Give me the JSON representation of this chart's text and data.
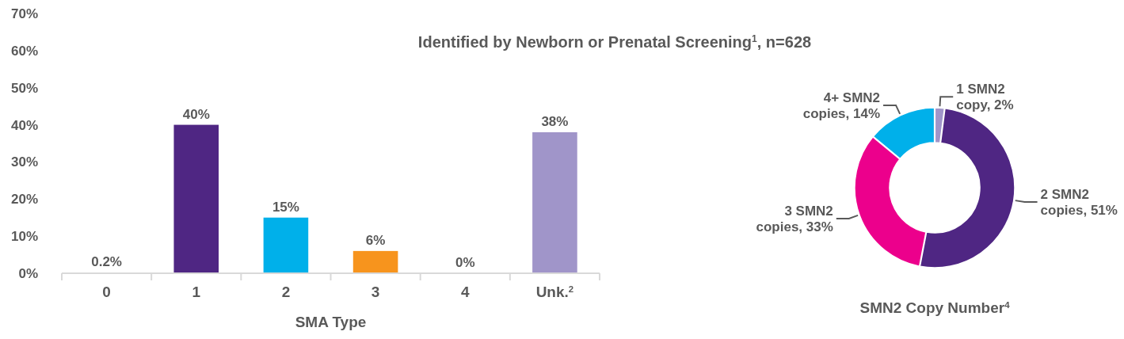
{
  "chart_data": [
    {
      "type": "bar",
      "title": "Identified by Newborn or Prenatal Screening$^{1}$, n=628",
      "xlabel": "SMA Type",
      "categories": [
        "0",
        "1",
        "2",
        "3",
        "4",
        "Unk.$^{2}$"
      ],
      "values": [
        0.2,
        40,
        15,
        6,
        0,
        38
      ],
      "colors": [
        "#ec008c",
        "#4f2683",
        "#00b0ea",
        "#f7941d",
        "#a095c9",
        "#a095c9"
      ],
      "value_labels": [
        "0.2%",
        "40%",
        "15%",
        "6%",
        "0%",
        "38%"
      ],
      "ylim": [
        0,
        70
      ],
      "yticks": [
        {
          "value": 0,
          "label": "0%"
        },
        {
          "value": 10,
          "label": "10%"
        },
        {
          "value": 20,
          "label": "20%"
        },
        {
          "value": 30,
          "label": "30%"
        },
        {
          "value": 40,
          "label": "40%"
        },
        {
          "value": 50,
          "label": "50%"
        },
        {
          "value": 60,
          "label": "60%"
        },
        {
          "value": 70,
          "label": "70%"
        }
      ],
      "grid": false
    },
    {
      "type": "donut",
      "title": "SMN2 Copy Number$^{4}$",
      "categories": [
        "1 SMN2 copy",
        "2 SMN2 copies",
        "3 SMN2 copies",
        "4+ SMN2 copies"
      ],
      "values": [
        2,
        51,
        33,
        14
      ],
      "colors": [
        "#a095c9",
        "#4f2683",
        "#ec008c",
        "#00b0ea"
      ],
      "value_labels": [
        "2%",
        "51%",
        "33%",
        "14%"
      ]
    }
  ]
}
